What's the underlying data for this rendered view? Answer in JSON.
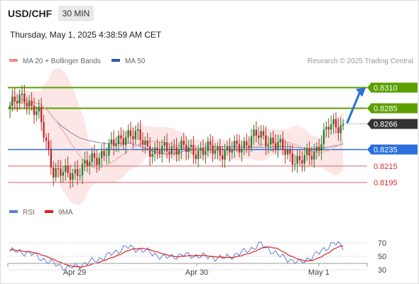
{
  "header": {
    "symbol": "USD/CHF",
    "timeframe": "30 MIN",
    "datetime": "Thursday, May 1, 2025 4:38:59 AM CET",
    "credit": "Research © 2025 Trading Central"
  },
  "legend_top": [
    {
      "label": "MA 20 + Bollinger Bands",
      "color": "#f28b8b"
    },
    {
      "label": "MA 50",
      "color": "#2c5aa0"
    }
  ],
  "legend_bottom": [
    {
      "label": "RSI",
      "color": "#5b7fd6"
    },
    {
      "label": "9MA",
      "color": "#e02020"
    }
  ],
  "colors": {
    "up_candle": "#2e7d32",
    "down_candle": "#c62828",
    "target_green": "#5aa000",
    "pivot_blue": "#2a6fdb",
    "support_red": "#e06060",
    "arrow": "#2a6fdb",
    "band_fill": "#fde0e0"
  },
  "chart_data": [
    {
      "type": "candlestick",
      "instrument": "USD/CHF",
      "interval": "30 MIN",
      "ylim": [
        0.8183,
        0.8325
      ],
      "x_ticks": [
        "Apr 29",
        "Apr 30",
        "May 1"
      ],
      "levels": [
        {
          "label": "0.8310",
          "value": 0.831,
          "kind": "resistance",
          "color": "#5aa000"
        },
        {
          "label": "0.8285",
          "value": 0.8285,
          "kind": "resistance",
          "color": "#5aa000"
        },
        {
          "label": "0.8266",
          "value": 0.8266,
          "kind": "last-price",
          "color": "#333333"
        },
        {
          "label": "0.8235",
          "value": 0.8235,
          "kind": "pivot",
          "color": "#2a6fdb"
        },
        {
          "label": "0.8215",
          "value": 0.8215,
          "kind": "support",
          "color": "#e06060"
        },
        {
          "label": "0.8195",
          "value": 0.8195,
          "kind": "support",
          "color": "#e06060"
        }
      ],
      "series": [
        {
          "name": "MA 20 + Bollinger Bands"
        },
        {
          "name": "MA 50"
        }
      ],
      "close_path": [
        {
          "step": 0,
          "close": 0.8288
        },
        {
          "step": 6,
          "close": 0.8299
        },
        {
          "step": 12,
          "close": 0.8276
        },
        {
          "step": 18,
          "close": 0.821
        },
        {
          "step": 24,
          "close": 0.8204
        },
        {
          "step": 30,
          "close": 0.8213
        },
        {
          "step": 36,
          "close": 0.8226
        },
        {
          "step": 42,
          "close": 0.8238
        },
        {
          "step": 48,
          "close": 0.8254
        },
        {
          "step": 54,
          "close": 0.8249
        },
        {
          "step": 60,
          "close": 0.823
        },
        {
          "step": 66,
          "close": 0.8238
        },
        {
          "step": 72,
          "close": 0.8236
        },
        {
          "step": 78,
          "close": 0.8233
        },
        {
          "step": 84,
          "close": 0.8235
        },
        {
          "step": 90,
          "close": 0.8232
        },
        {
          "step": 96,
          "close": 0.824
        },
        {
          "step": 102,
          "close": 0.8252
        },
        {
          "step": 108,
          "close": 0.8246
        },
        {
          "step": 114,
          "close": 0.8233
        },
        {
          "step": 120,
          "close": 0.822
        },
        {
          "step": 126,
          "close": 0.8232
        },
        {
          "step": 132,
          "close": 0.8262
        },
        {
          "step": 138,
          "close": 0.8266
        }
      ]
    },
    {
      "type": "line",
      "series": [
        {
          "name": "RSI"
        },
        {
          "name": "9MA"
        }
      ],
      "y_ticks": [
        70,
        50,
        30
      ],
      "ylim": [
        20,
        80
      ],
      "rsi_path": [
        {
          "step": 0,
          "value": 58
        },
        {
          "step": 8,
          "value": 55
        },
        {
          "step": 16,
          "value": 42
        },
        {
          "step": 24,
          "value": 32
        },
        {
          "step": 32,
          "value": 40
        },
        {
          "step": 40,
          "value": 50
        },
        {
          "step": 48,
          "value": 64
        },
        {
          "step": 56,
          "value": 58
        },
        {
          "step": 64,
          "value": 48
        },
        {
          "step": 72,
          "value": 52
        },
        {
          "step": 80,
          "value": 50
        },
        {
          "step": 88,
          "value": 47
        },
        {
          "step": 96,
          "value": 55
        },
        {
          "step": 104,
          "value": 68
        },
        {
          "step": 112,
          "value": 50
        },
        {
          "step": 120,
          "value": 40
        },
        {
          "step": 128,
          "value": 55
        },
        {
          "step": 134,
          "value": 70
        },
        {
          "step": 138,
          "value": 64
        }
      ]
    }
  ]
}
